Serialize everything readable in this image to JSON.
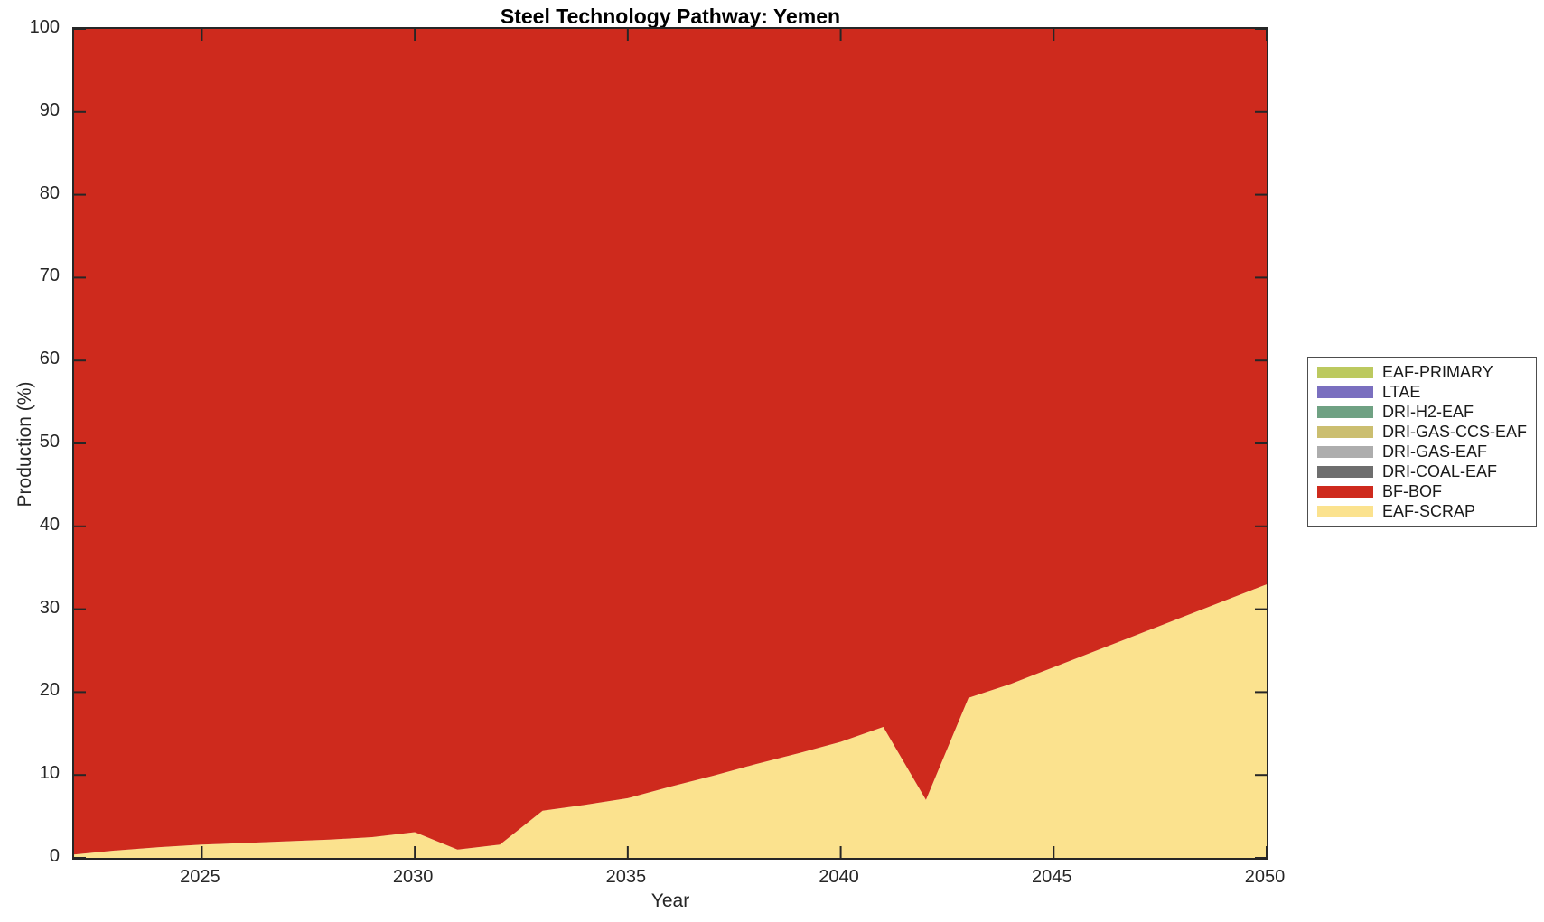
{
  "title": "Steel Technology Pathway: Yemen",
  "axes": {
    "xlabel": "Year",
    "ylabel": "Production (%)",
    "xticks": [
      2025,
      2030,
      2035,
      2040,
      2045,
      2050
    ],
    "yticks": [
      0,
      10,
      20,
      30,
      40,
      50,
      60,
      70,
      80,
      90,
      100
    ]
  },
  "legend": {
    "position": "right-outside",
    "entries": [
      {
        "label": "EAF-PRIMARY",
        "color": "#bcc95f"
      },
      {
        "label": "LTAE",
        "color": "#7a6fbf"
      },
      {
        "label": "DRI-H2-EAF",
        "color": "#6fa183"
      },
      {
        "label": "DRI-GAS-CCS-EAF",
        "color": "#cbbe70"
      },
      {
        "label": "DRI-GAS-EAF",
        "color": "#adadad"
      },
      {
        "label": "DRI-COAL-EAF",
        "color": "#6e6e6e"
      },
      {
        "label": "BF-BOF",
        "color": "#ce2a1d"
      },
      {
        "label": "EAF-SCRAP",
        "color": "#fbe28e"
      }
    ]
  },
  "chart_data": {
    "type": "area",
    "stacked": true,
    "title": "Steel Technology Pathway: Yemen",
    "xlabel": "Year",
    "ylabel": "Production (%)",
    "xlim": [
      2022,
      2050
    ],
    "ylim": [
      0,
      100
    ],
    "grid": false,
    "legend_position": "east-outside",
    "x": [
      2022,
      2023,
      2024,
      2025,
      2026,
      2027,
      2028,
      2029,
      2030,
      2031,
      2032,
      2033,
      2034,
      2035,
      2036,
      2037,
      2038,
      2039,
      2040,
      2041,
      2042,
      2043,
      2044,
      2045,
      2046,
      2047,
      2048,
      2049,
      2050
    ],
    "stack_order_bottom_to_top": [
      "EAF-SCRAP",
      "BF-BOF",
      "DRI-COAL-EAF",
      "DRI-GAS-EAF",
      "DRI-GAS-CCS-EAF",
      "DRI-H2-EAF",
      "LTAE",
      "EAF-PRIMARY"
    ],
    "series": [
      {
        "name": "EAF-SCRAP",
        "color": "#fbe28e",
        "values": [
          0.4,
          0.9,
          1.3,
          1.6,
          1.8,
          2.0,
          2.2,
          2.5,
          3.1,
          1.0,
          1.6,
          5.7,
          6.4,
          7.2,
          8.6,
          9.9,
          11.3,
          12.6,
          14.0,
          15.8,
          7.0,
          19.3,
          21.0,
          23.0,
          25.0,
          27.0,
          29.0,
          31.0,
          33.0
        ]
      },
      {
        "name": "BF-BOF",
        "color": "#ce2a1d",
        "values": [
          99.6,
          99.1,
          98.7,
          98.4,
          98.2,
          98.0,
          97.8,
          97.5,
          96.9,
          99.0,
          98.4,
          94.3,
          93.6,
          92.8,
          91.4,
          90.1,
          88.7,
          87.4,
          86.0,
          84.2,
          93.0,
          80.7,
          79.0,
          77.0,
          75.0,
          73.0,
          71.0,
          69.0,
          67.0
        ]
      },
      {
        "name": "DRI-COAL-EAF",
        "color": "#6e6e6e",
        "values": [
          0,
          0,
          0,
          0,
          0,
          0,
          0,
          0,
          0,
          0,
          0,
          0,
          0,
          0,
          0,
          0,
          0,
          0,
          0,
          0,
          0,
          0,
          0,
          0,
          0,
          0,
          0,
          0,
          0
        ]
      },
      {
        "name": "DRI-GAS-EAF",
        "color": "#adadad",
        "values": [
          0,
          0,
          0,
          0,
          0,
          0,
          0,
          0,
          0,
          0,
          0,
          0,
          0,
          0,
          0,
          0,
          0,
          0,
          0,
          0,
          0,
          0,
          0,
          0,
          0,
          0,
          0,
          0,
          0
        ]
      },
      {
        "name": "DRI-GAS-CCS-EAF",
        "color": "#cbbe70",
        "values": [
          0,
          0,
          0,
          0,
          0,
          0,
          0,
          0,
          0,
          0,
          0,
          0,
          0,
          0,
          0,
          0,
          0,
          0,
          0,
          0,
          0,
          0,
          0,
          0,
          0,
          0,
          0,
          0,
          0
        ]
      },
      {
        "name": "DRI-H2-EAF",
        "color": "#6fa183",
        "values": [
          0,
          0,
          0,
          0,
          0,
          0,
          0,
          0,
          0,
          0,
          0,
          0,
          0,
          0,
          0,
          0,
          0,
          0,
          0,
          0,
          0,
          0,
          0,
          0,
          0,
          0,
          0,
          0,
          0
        ]
      },
      {
        "name": "LTAE",
        "color": "#7a6fbf",
        "values": [
          0,
          0,
          0,
          0,
          0,
          0,
          0,
          0,
          0,
          0,
          0,
          0,
          0,
          0,
          0,
          0,
          0,
          0,
          0,
          0,
          0,
          0,
          0,
          0,
          0,
          0,
          0,
          0,
          0
        ]
      },
      {
        "name": "EAF-PRIMARY",
        "color": "#bcc95f",
        "values": [
          0,
          0,
          0,
          0,
          0,
          0,
          0,
          0,
          0,
          0,
          0,
          0,
          0,
          0,
          0,
          0,
          0,
          0,
          0,
          0,
          0,
          0,
          0,
          0,
          0,
          0,
          0,
          0,
          0
        ]
      }
    ]
  }
}
